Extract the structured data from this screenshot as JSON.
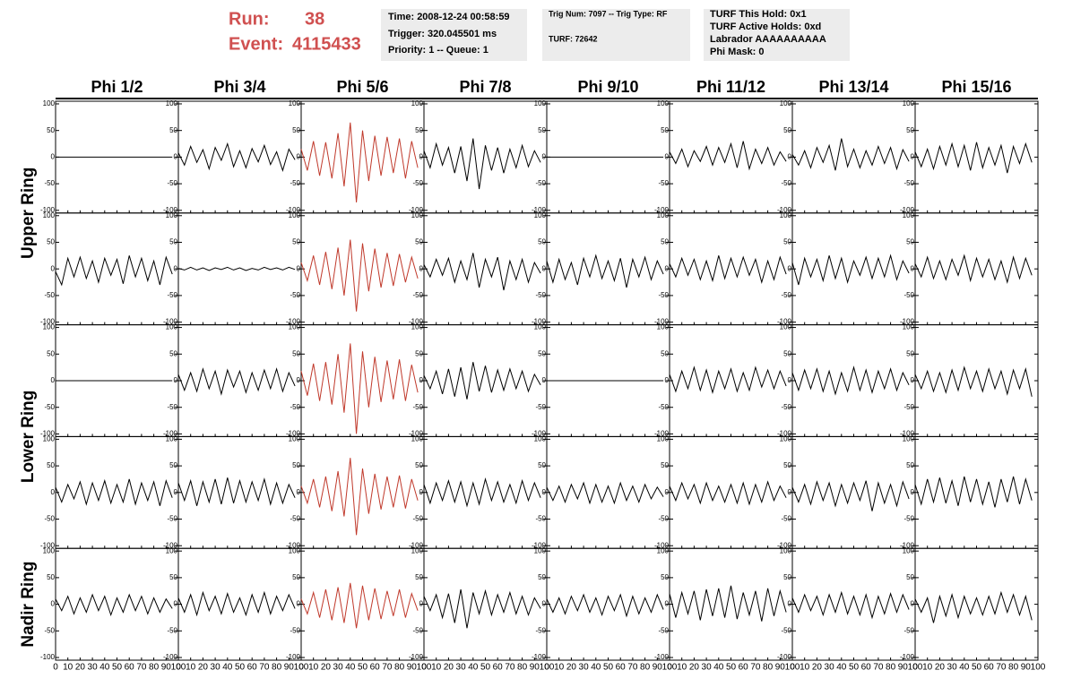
{
  "header": {
    "run_label": "Run:",
    "run": "38",
    "event_label": "Event:",
    "event": "4115433",
    "info": [
      [
        "Time: 2008-12-24 00:58:59",
        "Trigger: 320.045501 ms",
        "Priority: 1 -- Queue: 1"
      ],
      [
        "Trig Num: 7097 -- Trig Type: RF",
        "TURF: 72642"
      ],
      [
        "TURF This Hold: 0x1",
        "TURF Active Holds: 0xd",
        "Labrador AAAAAAAAAA",
        "Phi Mask: 0"
      ]
    ]
  },
  "chart_data": {
    "type": "line",
    "columns": [
      "Phi 1/2",
      "Phi 3/4",
      "Phi 5/6",
      "Phi 7/8",
      "Phi 9/10",
      "Phi 11/12",
      "Phi 13/14",
      "Phi 15/16"
    ],
    "ring_labels": [
      "Upper Ring",
      "Lower Ring",
      "Nadir Ring"
    ],
    "ylim": [
      -105,
      105
    ],
    "yticks": [
      -100,
      -50,
      0,
      50,
      100
    ],
    "xlim": [
      0,
      100
    ],
    "xticks": [
      0,
      10,
      20,
      30,
      40,
      50,
      60,
      70,
      80,
      90,
      100
    ],
    "x": [
      0,
      5,
      10,
      15,
      20,
      25,
      30,
      35,
      40,
      45,
      50,
      55,
      60,
      65,
      70,
      75,
      80,
      85,
      90,
      95
    ],
    "panels": [
      {
        "color": "#000000",
        "values": [
          0,
          0,
          0,
          0,
          0,
          0,
          0,
          0,
          0,
          0,
          0,
          0,
          0,
          0,
          0,
          0,
          0,
          0,
          0,
          0
        ]
      },
      {
        "color": "#000000",
        "values": [
          8,
          -15,
          20,
          -10,
          14,
          -22,
          18,
          -6,
          25,
          -18,
          12,
          -20,
          16,
          -9,
          22,
          -14,
          10,
          -25,
          15,
          -5
        ]
      },
      {
        "color": "#c0392b",
        "values": [
          15,
          -25,
          30,
          -35,
          28,
          -40,
          45,
          -55,
          65,
          -85,
          50,
          -45,
          40,
          -35,
          38,
          -30,
          35,
          -40,
          30,
          -20
        ]
      },
      {
        "color": "#000000",
        "values": [
          12,
          -20,
          25,
          -15,
          18,
          -30,
          20,
          -45,
          35,
          -60,
          22,
          -25,
          18,
          -30,
          15,
          -20,
          22,
          -18,
          12,
          -10
        ]
      },
      {
        "color": "#000000",
        "values": [
          0,
          0,
          0,
          0,
          0,
          0,
          0,
          0,
          0,
          0,
          0,
          0,
          0,
          0,
          0,
          0,
          0,
          0,
          0,
          0
        ]
      },
      {
        "color": "#000000",
        "values": [
          10,
          -12,
          15,
          -18,
          12,
          -8,
          20,
          -15,
          18,
          -10,
          25,
          -20,
          30,
          -22,
          15,
          -12,
          18,
          -15,
          10,
          -8
        ]
      },
      {
        "color": "#000000",
        "values": [
          5,
          -15,
          12,
          -20,
          18,
          -10,
          22,
          -25,
          35,
          -18,
          15,
          -20,
          12,
          -15,
          20,
          -12,
          18,
          -22,
          14,
          -8
        ]
      },
      {
        "color": "#000000",
        "values": [
          10,
          -18,
          15,
          -22,
          20,
          -15,
          25,
          -18,
          22,
          -25,
          28,
          -20,
          18,
          -15,
          22,
          -30,
          20,
          -12,
          25,
          -10
        ]
      },
      {
        "color": "#000000",
        "values": [
          -5,
          -30,
          20,
          -15,
          22,
          -18,
          15,
          -25,
          20,
          -12,
          18,
          -28,
          25,
          -15,
          20,
          -22,
          15,
          -30,
          22,
          -10
        ]
      },
      {
        "color": "#000000",
        "values": [
          1,
          -2,
          3,
          -2,
          2,
          -3,
          2,
          -1,
          3,
          -2,
          2,
          -3,
          1,
          -2,
          3,
          -1,
          2,
          -2,
          3,
          -1
        ]
      },
      {
        "color": "#c0392b",
        "values": [
          12,
          -22,
          25,
          -30,
          32,
          -38,
          40,
          -50,
          55,
          -80,
          48,
          -42,
          38,
          -35,
          30,
          -32,
          28,
          -25,
          22,
          -18
        ]
      },
      {
        "color": "#000000",
        "values": [
          8,
          -15,
          18,
          -12,
          20,
          -25,
          15,
          -20,
          30,
          -35,
          18,
          -15,
          22,
          -40,
          15,
          -20,
          18,
          -25,
          12,
          -8
        ]
      },
      {
        "color": "#000000",
        "values": [
          15,
          -25,
          18,
          -20,
          12,
          -30,
          20,
          -15,
          25,
          -18,
          15,
          -22,
          20,
          -35,
          18,
          -15,
          22,
          -20,
          15,
          -10
        ]
      },
      {
        "color": "#000000",
        "values": [
          10,
          -15,
          20,
          -12,
          18,
          -20,
          15,
          -22,
          25,
          -18,
          20,
          -15,
          22,
          -12,
          18,
          -25,
          15,
          -20,
          22,
          -10
        ]
      },
      {
        "color": "#000000",
        "values": [
          12,
          -30,
          20,
          -15,
          18,
          -22,
          25,
          -18,
          20,
          -25,
          15,
          -12,
          22,
          -18,
          20,
          -15,
          25,
          -20,
          15,
          -8
        ]
      },
      {
        "color": "#000000",
        "values": [
          10,
          -15,
          22,
          -18,
          15,
          -20,
          18,
          -12,
          25,
          -22,
          20,
          -15,
          18,
          -20,
          15,
          -25,
          22,
          -18,
          20,
          -12
        ]
      },
      {
        "color": "#000000",
        "values": [
          0,
          0,
          0,
          0,
          0,
          0,
          0,
          0,
          0,
          0,
          0,
          0,
          0,
          0,
          0,
          0,
          0,
          0,
          0,
          0
        ]
      },
      {
        "color": "#000000",
        "values": [
          12,
          -18,
          15,
          -20,
          22,
          -15,
          18,
          -25,
          20,
          -12,
          18,
          -22,
          15,
          -18,
          20,
          -15,
          22,
          -20,
          15,
          -10
        ]
      },
      {
        "color": "#c0392b",
        "values": [
          18,
          -28,
          32,
          -38,
          35,
          -45,
          50,
          -60,
          70,
          -100,
          55,
          -50,
          45,
          -40,
          38,
          -35,
          40,
          -38,
          30,
          -22
        ]
      },
      {
        "color": "#000000",
        "values": [
          10,
          -15,
          18,
          -25,
          22,
          -30,
          25,
          -35,
          35,
          -20,
          28,
          -22,
          20,
          -18,
          22,
          -15,
          18,
          -20,
          12,
          -8
        ]
      },
      {
        "color": "#000000",
        "values": [
          0,
          0,
          0,
          0,
          0,
          0,
          0,
          0,
          0,
          0,
          0,
          0,
          0,
          0,
          0,
          0,
          0,
          0,
          0,
          0
        ]
      },
      {
        "color": "#000000",
        "values": [
          12,
          -20,
          18,
          -15,
          25,
          -18,
          20,
          -22,
          18,
          -15,
          22,
          -20,
          15,
          -18,
          25,
          -12,
          20,
          -15,
          18,
          -10
        ]
      },
      {
        "color": "#000000",
        "values": [
          15,
          -18,
          20,
          -15,
          22,
          -20,
          18,
          -25,
          15,
          -20,
          25,
          -18,
          20,
          -22,
          18,
          -15,
          22,
          -18,
          15,
          -8
        ]
      },
      {
        "color": "#000000",
        "values": [
          12,
          -15,
          18,
          -20,
          15,
          -22,
          20,
          -18,
          25,
          -15,
          18,
          -20,
          22,
          -15,
          18,
          -25,
          20,
          -15,
          22,
          -30
        ]
      },
      {
        "color": "#000000",
        "values": [
          10,
          -18,
          15,
          -12,
          20,
          -22,
          18,
          -15,
          22,
          -20,
          15,
          -18,
          25,
          -22,
          18,
          -15,
          20,
          -25,
          22,
          -10
        ]
      },
      {
        "color": "#000000",
        "values": [
          18,
          -15,
          22,
          -25,
          20,
          -18,
          25,
          -22,
          28,
          -20,
          22,
          -18,
          20,
          -15,
          25,
          -22,
          18,
          -20,
          15,
          -10
        ]
      },
      {
        "color": "#c0392b",
        "values": [
          12,
          -20,
          25,
          -28,
          30,
          -35,
          40,
          -45,
          65,
          -80,
          45,
          -40,
          35,
          -32,
          30,
          -28,
          32,
          -30,
          25,
          -15
        ]
      },
      {
        "color": "#000000",
        "values": [
          15,
          -20,
          18,
          -15,
          22,
          -18,
          20,
          -25,
          18,
          -22,
          25,
          -15,
          20,
          -18,
          15,
          -20,
          22,
          -15,
          18,
          -10
        ]
      },
      {
        "color": "#000000",
        "values": [
          10,
          -15,
          12,
          -18,
          15,
          -12,
          18,
          -20,
          15,
          -18,
          12,
          -20,
          18,
          -15,
          12,
          -18,
          15,
          -12,
          10,
          -8
        ]
      },
      {
        "color": "#000000",
        "values": [
          12,
          -15,
          18,
          -12,
          15,
          -20,
          18,
          -15,
          12,
          -18,
          15,
          -20,
          18,
          -22,
          15,
          -18,
          20,
          -15,
          12,
          -10
        ]
      },
      {
        "color": "#000000",
        "values": [
          10,
          -18,
          15,
          -22,
          20,
          -15,
          18,
          -25,
          15,
          -20,
          18,
          -15,
          22,
          -35,
          18,
          -20,
          15,
          -25,
          20,
          -12
        ]
      },
      {
        "color": "#000000",
        "values": [
          15,
          -22,
          25,
          -18,
          28,
          -20,
          22,
          -25,
          30,
          -18,
          25,
          -22,
          20,
          -28,
          25,
          -18,
          30,
          -22,
          25,
          -15
        ]
      },
      {
        "color": "#000000",
        "values": [
          10,
          -12,
          15,
          -18,
          12,
          -15,
          18,
          -12,
          15,
          -20,
          12,
          -15,
          18,
          -12,
          15,
          -18,
          12,
          -15,
          10,
          -8
        ]
      },
      {
        "color": "#000000",
        "values": [
          12,
          -15,
          18,
          -20,
          22,
          -12,
          15,
          -18,
          20,
          -15,
          12,
          -20,
          18,
          -15,
          22,
          -18,
          15,
          -12,
          18,
          -8
        ]
      },
      {
        "color": "#c0392b",
        "values": [
          10,
          -18,
          22,
          -25,
          28,
          -30,
          32,
          -35,
          40,
          -45,
          35,
          -30,
          30,
          -28,
          25,
          -22,
          28,
          -25,
          20,
          -12
        ]
      },
      {
        "color": "#000000",
        "values": [
          15,
          -12,
          18,
          -25,
          20,
          -35,
          28,
          -45,
          22,
          -18,
          25,
          -20,
          18,
          -15,
          22,
          -18,
          15,
          -20,
          12,
          -8
        ]
      },
      {
        "color": "#000000",
        "values": [
          10,
          -15,
          12,
          -18,
          15,
          -12,
          18,
          -15,
          12,
          -20,
          15,
          -12,
          18,
          -22,
          15,
          -18,
          12,
          -15,
          18,
          -10
        ]
      },
      {
        "color": "#000000",
        "values": [
          20,
          -25,
          22,
          -18,
          25,
          -30,
          28,
          -22,
          30,
          -25,
          35,
          -28,
          22,
          -20,
          25,
          -32,
          30,
          -22,
          25,
          -15
        ]
      },
      {
        "color": "#000000",
        "values": [
          12,
          -15,
          18,
          -12,
          15,
          -20,
          18,
          -15,
          22,
          -18,
          15,
          -20,
          18,
          -25,
          15,
          -18,
          20,
          -15,
          18,
          -10
        ]
      },
      {
        "color": "#000000",
        "values": [
          10,
          -15,
          12,
          -35,
          15,
          -22,
          18,
          -25,
          15,
          -18,
          12,
          -20,
          15,
          -18,
          22,
          -15,
          18,
          -20,
          15,
          -30
        ]
      }
    ]
  }
}
